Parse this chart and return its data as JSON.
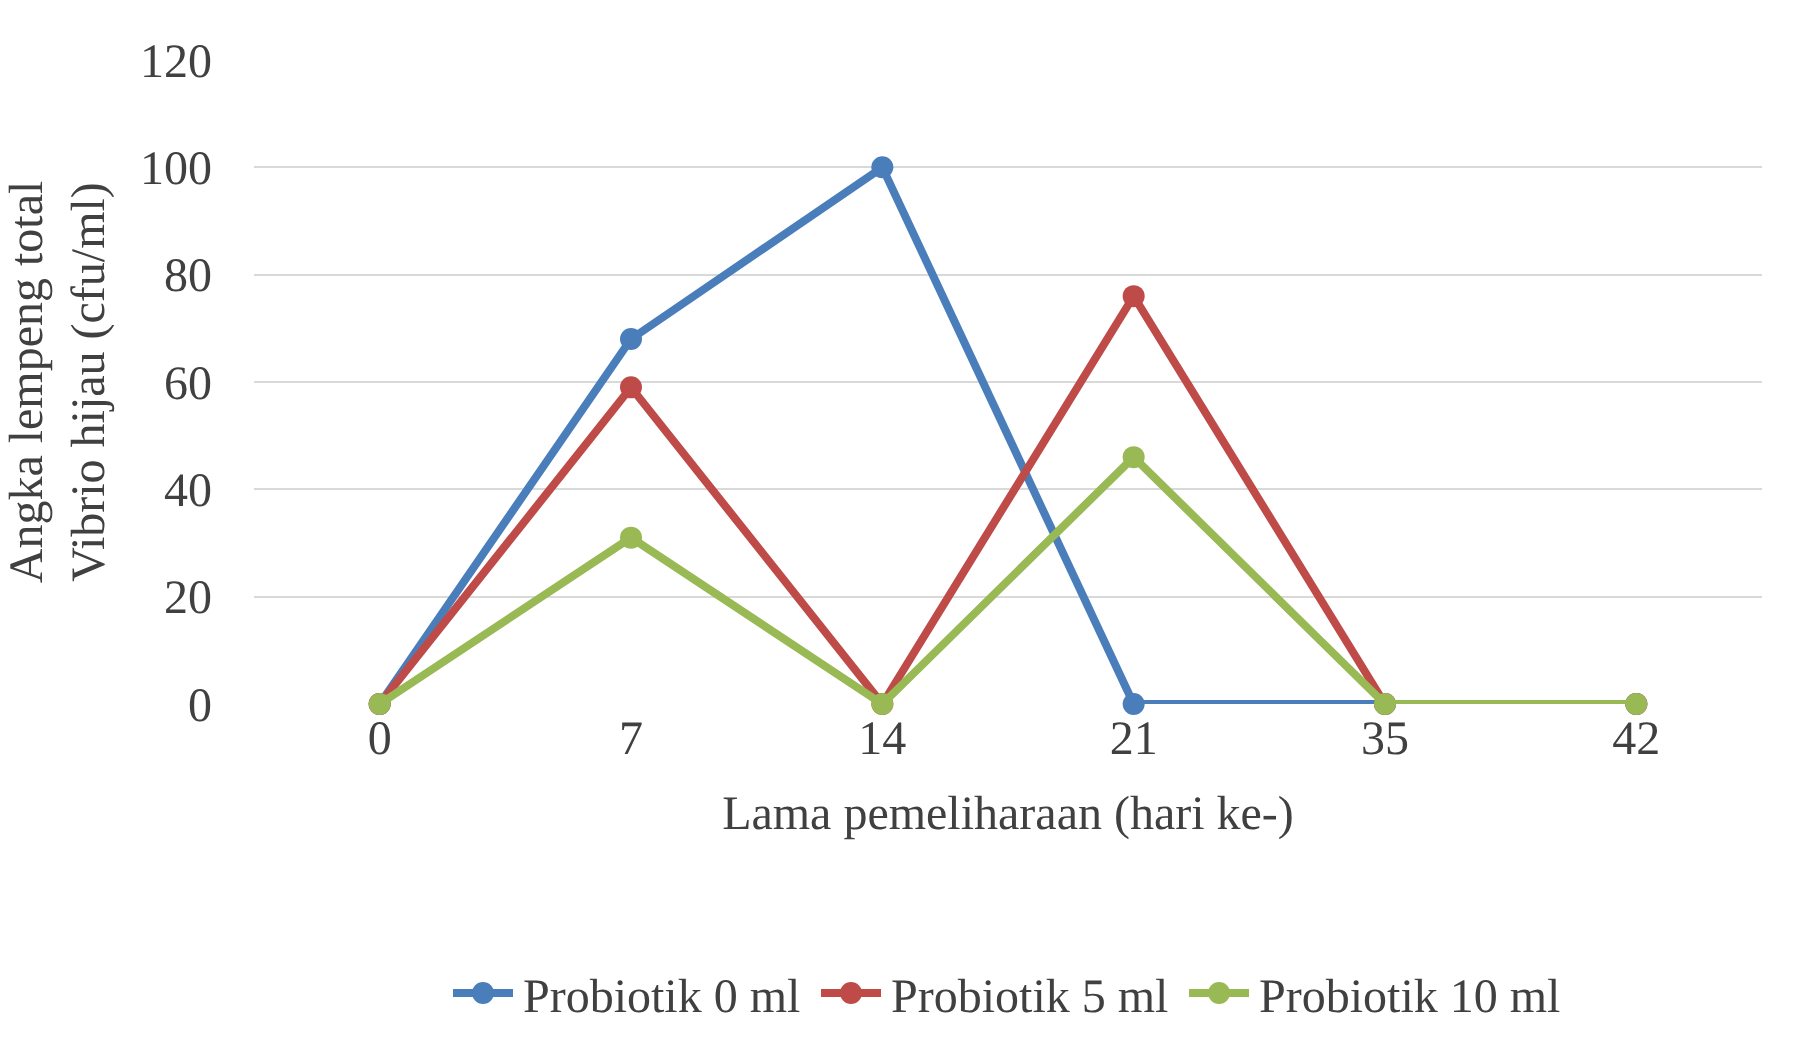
{
  "chart_data": {
    "type": "line",
    "xlabel": "Lama pemeliharaan (hari ke-)",
    "ylabel": "Angka lempeng total Vibrio hijau (cfu/ml)",
    "categories": [
      "0",
      "7",
      "14",
      "21",
      "35",
      "42"
    ],
    "series": [
      {
        "name": "Probiotik 0 ml",
        "color": "#4a7ebb",
        "values": [
          0,
          68,
          100,
          0,
          0,
          0
        ]
      },
      {
        "name": "Probiotik 5 ml",
        "color": "#be4b48",
        "values": [
          0,
          59,
          0,
          76,
          0,
          0
        ]
      },
      {
        "name": "Probiotik 10 ml",
        "color": "#98b954",
        "values": [
          0,
          31,
          0,
          46,
          0,
          0
        ]
      }
    ],
    "ylim": [
      0,
      120
    ],
    "yticks": [
      0,
      20,
      40,
      60,
      80,
      100,
      120
    ],
    "grid": "y",
    "legend": "bottom",
    "marker": "circle",
    "line_style": "solid"
  }
}
